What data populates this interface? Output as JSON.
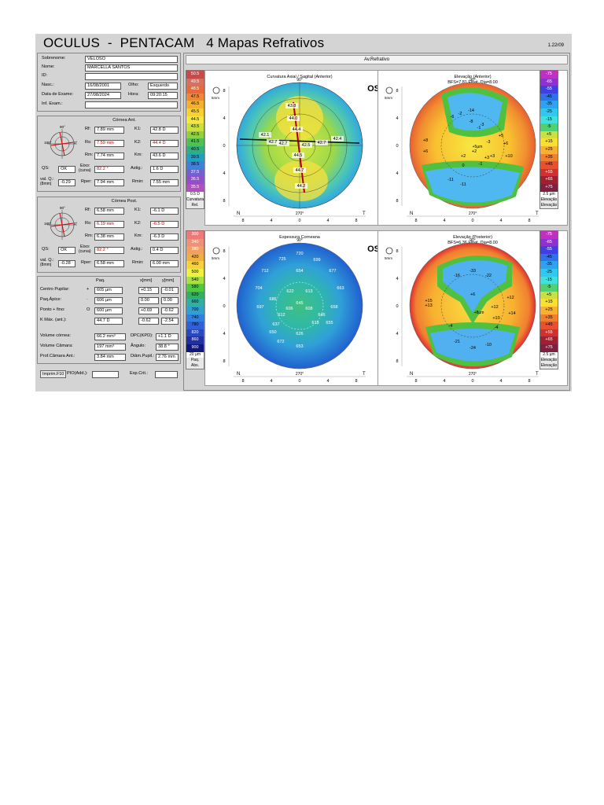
{
  "header": {
    "brand": "OCULUS",
    "dash": "-",
    "product": "PENTACAM",
    "report": "4 Mapas Refrativos",
    "version": "1.22r09"
  },
  "patient": {
    "surname_label": "Sobrenome:",
    "surname": "VELOSO",
    "name_label": "Nome:",
    "name": "MARCELLA SANTOS",
    "id_label": "ID:",
    "id": "",
    "dob_label": "Nasc.:",
    "dob": "16/08/2001",
    "eye_label": "Olho:",
    "eye": "Esquerdo",
    "exam_date_label": "Data de Exame:",
    "exam_date": "27/08/2024",
    "time_label": "Hora:",
    "time": "09:20:15",
    "info_label": "Inf. Exam.:",
    "info": ""
  },
  "cornea_ant": {
    "title": "Córnea Ant.",
    "rf_label": "Rf:",
    "rf": "7.89 mm",
    "k1_label": "K1:",
    "k1": "42.8 D",
    "rs_label": "Rs:",
    "rs": "7.59 mm",
    "k2_label": "K2:",
    "k2": "44.4 D",
    "rm_label": "Rm:",
    "rm": "7.74 mm",
    "km_label": "Km:",
    "km": "43.6 D",
    "qs_label": "QS:",
    "qs": "OK",
    "axis_label": "Eixo:",
    "axis_sub": "(curva)",
    "axis": "82.2 °",
    "astig_label": "Astig.:",
    "astig": "1.6 D",
    "q_label": "val. Q.:",
    "q_sub": "(8mm)",
    "q": "-0.29",
    "rper_label": "Rper:",
    "rper": "7.94 mm",
    "rmin_label": "Rmin:",
    "rmin": "7.55 mm"
  },
  "cornea_post": {
    "title": "Córnea Post.",
    "rf_label": "Rf:",
    "rf": "6.58 mm",
    "k1_label": "K1:",
    "k1": "-6.1 D",
    "rs_label": "Rs:",
    "rs": "6.19 mm",
    "k2_label": "K2:",
    "k2": "-6.5 D",
    "rm_label": "Rm:",
    "rm": "6.38 mm",
    "km_label": "Km:",
    "km": "-6.3 D",
    "qs_label": "QS:",
    "qs": "OK",
    "axis_label": "Eixo:",
    "axis_sub": "(curva)",
    "axis": "82.2 °",
    "astig_label": "Astig.:",
    "astig": "0.4 D",
    "q_label": "val. Q.:",
    "q_sub": "(8mm)",
    "q": "-0.28",
    "rper_label": "Rper:",
    "rper": "6.58 mm",
    "rmin_label": "Rmin:",
    "rmin": "6.00 mm"
  },
  "pachy": {
    "col_paq": "Paq.",
    "col_x": "x[mm]",
    "col_y": "y[mm]",
    "rows": [
      {
        "label": "Centro Pupilar:",
        "sym": "+",
        "paq": "605 µm",
        "x": "+0.15",
        "y": "-0.01"
      },
      {
        "label": "Paq.Ápice:",
        "sym": "·",
        "paq": "606 µm",
        "x": "0.00",
        "y": "0.00"
      },
      {
        "label": "Ponto + fino:",
        "sym": "O",
        "paq": "600 µm",
        "x": "+0.69",
        "y": "-0.62"
      },
      {
        "label": "K Máx. (ant.):",
        "sym": "",
        "paq": "44.7 D",
        "x": "-0.62",
        "y": "-2.54"
      }
    ]
  },
  "volumes": {
    "corneal_vol_label": "Volume córnea:",
    "corneal_vol": "66.2 mm³",
    "dpc_label": "DPC(KPD):",
    "dpc": "+1.1 D",
    "chamber_vol_label": "Volume Câmara:",
    "chamber_vol": "197 mm³",
    "angle_label": "Ângulo:",
    "angle": "38.8 °",
    "chamber_depth_label": "Prof.Câmara Ant.:",
    "chamber_depth": "3.84 mm",
    "pupil_label": "Diâm.Pupil.:",
    "pupil": "2.76 mm",
    "btn_print": "Imprim.F10",
    "iop_label": "PIO(Add.):",
    "iop": "",
    "crit_label": "Esp.Crit.:",
    "crit": ""
  },
  "maps_header": "Av.Refrativo",
  "maps": {
    "axial": {
      "title": "Curvatura Axial / Sagital (Anterior)",
      "eye": "OS",
      "scale_title": "0.5 D",
      "scale_bottom": "Curvatura",
      "scale_bottom2": "Rel.",
      "scale": [
        "50.5",
        "49.5",
        "48.5",
        "47.5",
        "46.5",
        "45.5",
        "44.5",
        "43.5",
        "42.5",
        "41.5",
        "40.5",
        "39.5",
        "38.5",
        "37.5",
        "36.5",
        "35.5"
      ],
      "values": [
        {
          "t": "43.8"
        },
        {
          "t": "44.0"
        },
        {
          "t": "44.4"
        },
        {
          "t": "42.1"
        },
        {
          "t": "42.7"
        },
        {
          "t": "42.7"
        },
        {
          "t": "42.5"
        },
        {
          "t": "42.7"
        },
        {
          "t": "42.4"
        },
        {
          "t": "44.5"
        },
        {
          "t": "44.7"
        },
        {
          "t": "44.2"
        }
      ]
    },
    "elev_ant": {
      "title": "Elevação (Anterior)",
      "sub": "BFS=7.81 Float, Dia=8.00",
      "eye": "OS",
      "scale_title": "2.5 µm",
      "scale_bottom": "Elevação",
      "scale_bottom2": "Elevação",
      "scale": [
        "-75",
        "-65",
        "-55",
        "-45",
        "-35",
        "-25",
        "-15",
        "-5",
        "+5",
        "+15",
        "+25",
        "+35",
        "+45",
        "+55",
        "+65",
        "+75"
      ],
      "values": [
        "-14",
        "-2",
        "-6",
        "-8",
        "-3",
        "-1",
        "+8",
        "+6",
        "+5",
        "+10",
        "+6",
        "+3",
        "+2",
        "+2",
        "+3",
        "-1",
        "0",
        "-11",
        "-11",
        "-3"
      ],
      "pointer": "+5µm"
    },
    "pachy": {
      "title": "Espessura Corneana",
      "eye": "OS",
      "scale_title": "20 µm",
      "scale_bottom": "Paq.",
      "scale_bottom2": "Abs.",
      "scale": [
        "300",
        "340",
        "380",
        "420",
        "460",
        "500",
        "540",
        "580",
        "620",
        "660",
        "700",
        "740",
        "780",
        "820",
        "860",
        "900"
      ],
      "values": [
        "720",
        "725",
        "699",
        "712",
        "654",
        "677",
        "704",
        "622",
        "613",
        "663",
        "686",
        "645",
        "606",
        "608",
        "658",
        "697",
        "612",
        "646",
        "637",
        "618",
        "655",
        "650",
        "626",
        "672",
        "653"
      ]
    },
    "elev_post": {
      "title": "Elevação (Posterior)",
      "sub": "BFS=6.36 Float, Dia=8.00",
      "eye": "OS",
      "scale_title": "2.5 µm",
      "scale_bottom": "Elevação",
      "scale_bottom2": "Elevação",
      "scale": [
        "-75",
        "-65",
        "-55",
        "-45",
        "-35",
        "-25",
        "-15",
        "-5",
        "+5",
        "+15",
        "+25",
        "+35",
        "+45",
        "+55",
        "+65",
        "+75"
      ],
      "values": [
        "-33",
        "-16",
        "-22",
        "+12",
        "+13",
        "+15",
        "+12",
        "+14",
        "+10",
        "+6",
        "-4",
        "-4",
        "-21",
        "-24",
        "-10"
      ],
      "pointer": "+8µm"
    }
  },
  "axes": {
    "ticks": [
      "8",
      "4",
      "0",
      "4",
      "8"
    ],
    "n": "N",
    "t": "T",
    "deg90": "90°",
    "deg270": "270°",
    "deg180": "180°",
    "deg0": "0°",
    "mm": "5mm"
  },
  "colors": {
    "bg": "#d4d4d4",
    "red_text": "#b00000",
    "pachy_dark": "#1850c0"
  }
}
